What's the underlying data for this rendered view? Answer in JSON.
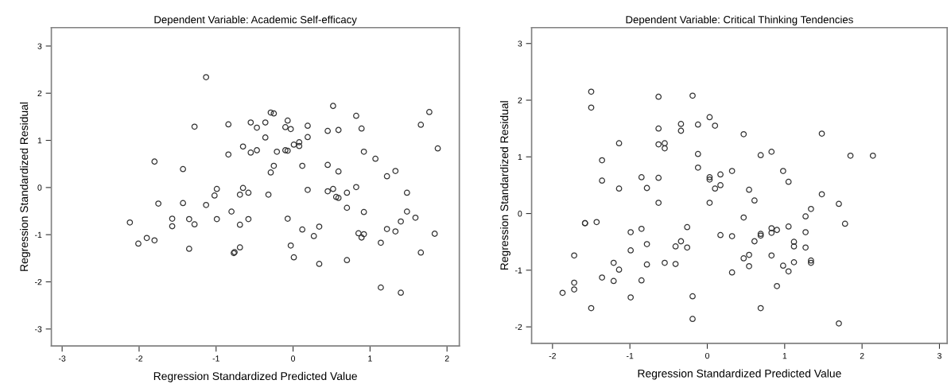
{
  "chart_data": [
    {
      "type": "scatter",
      "title": "Dependent Variable: Academic Self-efficacy",
      "xlabel": "Regression Standardized Predicted Value",
      "ylabel": "Regression Standardized Residual",
      "marker": "circle",
      "grid": false,
      "legend": false,
      "xlim": [
        -3.14,
        2.16
      ],
      "ylim": [
        -3.36,
        3.39
      ],
      "xticks": [
        -3,
        -2,
        -1,
        0,
        1,
        2
      ],
      "yticks": [
        -3,
        -2,
        -1,
        0,
        1,
        2,
        3
      ],
      "series": [
        {
          "color": "#333333",
          "x": [
            -1.13,
            -1.28,
            -0.84,
            -0.55,
            -1.8,
            -1.43,
            -0.65,
            -0.84,
            -0.55,
            -0.99,
            -1.02,
            -0.65,
            -0.69,
            -0.58,
            -1.75,
            -1.43,
            -1.13,
            -0.8,
            -2.12,
            -1.57,
            -1.57,
            -1.35,
            -1.28,
            -0.99,
            -0.69,
            -0.58,
            -2.01,
            -1.9,
            -1.8,
            -1.35,
            -0.77,
            -0.76,
            -0.69,
            0.52,
            -0.29,
            -0.25,
            1.77,
            0.82,
            -0.36,
            -0.07,
            -0.47,
            -0.1,
            -0.03,
            0.19,
            0.45,
            0.59,
            0.89,
            1.66,
            -0.36,
            0.19,
            0.08,
            0.01,
            0.08,
            -0.47,
            -0.21,
            -0.1,
            -0.07,
            0.92,
            1.88,
            1.07,
            -0.25,
            -0.29,
            0.12,
            0.45,
            0.59,
            1.33,
            1.22,
            -0.32,
            0.19,
            0.45,
            0.52,
            0.56,
            0.59,
            0.7,
            0.82,
            1.48,
            0.7,
            0.92,
            1.48,
            -0.07,
            1.4,
            1.59,
            0.12,
            0.34,
            0.27,
            0.85,
            0.89,
            0.92,
            1.22,
            1.33,
            1.84,
            1.14,
            -0.03,
            0.01,
            0.34,
            0.7,
            1.66,
            1.14,
            1.4
          ],
          "values": [
            2.34,
            1.29,
            1.34,
            1.38,
            0.55,
            0.39,
            0.87,
            0.7,
            0.74,
            -0.03,
            -0.17,
            -0.01,
            -0.15,
            -0.11,
            -0.34,
            -0.33,
            -0.37,
            -0.51,
            -0.74,
            -0.66,
            -0.82,
            -0.67,
            -0.78,
            -0.67,
            -0.79,
            -0.67,
            -1.19,
            -1.07,
            -1.12,
            -1.3,
            -1.39,
            -1.37,
            -1.27,
            1.73,
            1.59,
            1.57,
            1.6,
            1.52,
            1.38,
            1.42,
            1.27,
            1.28,
            1.24,
            1.31,
            1.2,
            1.22,
            1.25,
            1.33,
            1.06,
            1.07,
            0.96,
            0.91,
            0.88,
            0.79,
            0.76,
            0.79,
            0.78,
            0.76,
            0.83,
            0.61,
            0.46,
            0.32,
            0.46,
            0.48,
            0.34,
            0.35,
            0.24,
            -0.15,
            -0.05,
            -0.08,
            -0.03,
            -0.2,
            -0.22,
            -0.11,
            0.01,
            -0.11,
            -0.43,
            -0.52,
            -0.51,
            -0.66,
            -0.72,
            -0.64,
            -0.89,
            -0.83,
            -1.03,
            -0.97,
            -1.06,
            -0.99,
            -0.88,
            -0.93,
            -0.98,
            -1.17,
            -1.23,
            -1.48,
            -1.62,
            -1.54,
            -1.38,
            -2.12,
            -2.23
          ]
        }
      ]
    },
    {
      "type": "scatter",
      "title": "Dependent Variable: Critical Thinking Tendencies",
      "xlabel": "Regression Standardized Predicted Value",
      "ylabel": "Regression Standardized Residual",
      "marker": "circle",
      "grid": false,
      "legend": false,
      "xlim": [
        -2.27,
        3.1
      ],
      "ylim": [
        -2.29,
        3.28
      ],
      "xticks": [
        -2,
        -1,
        0,
        1,
        2,
        3
      ],
      "yticks": [
        -2,
        -1,
        0,
        1,
        2,
        3
      ],
      "series": [
        {
          "color": "#333333",
          "x": [
            -1.5,
            -1.5,
            -0.63,
            -0.19,
            0.03,
            -0.34,
            -0.34,
            -0.12,
            0.1,
            -0.63,
            -1.14,
            -0.63,
            -0.55,
            -0.55,
            -0.12,
            -1.36,
            -0.12,
            0.32,
            -0.85,
            -0.63,
            0.03,
            0.03,
            0.17,
            0.17,
            0.1,
            -1.36,
            -1.14,
            -0.78,
            -0.63,
            0.03,
            -1.58,
            -1.58,
            -1.43,
            -0.99,
            -0.85,
            -0.26,
            -0.78,
            -0.41,
            -0.34,
            -0.26,
            0.17,
            0.32,
            -0.99,
            -1.72,
            -1.21,
            -1.14,
            -0.78,
            -0.55,
            -0.41,
            0.32,
            -1.36,
            -1.21,
            -0.85,
            -1.72,
            -1.72,
            -1.87,
            -0.99,
            -0.19,
            -1.5,
            -0.19,
            0.47,
            1.48,
            0.69,
            0.83,
            1.85,
            2.14,
            0.98,
            1.05,
            0.54,
            0.61,
            1.48,
            1.7,
            1.34,
            0.47,
            1.27,
            1.78,
            0.83,
            0.9,
            1.05,
            0.69,
            0.69,
            0.83,
            1.27,
            0.61,
            1.12,
            1.12,
            1.27,
            0.47,
            0.54,
            0.83,
            0.54,
            0.98,
            1.05,
            1.12,
            1.34,
            1.34,
            0.9,
            0.69,
            1.7
          ],
          "values": [
            2.15,
            1.87,
            2.06,
            2.08,
            1.7,
            1.58,
            1.46,
            1.57,
            1.55,
            1.5,
            1.24,
            1.22,
            1.24,
            1.15,
            1.05,
            0.94,
            0.81,
            0.75,
            0.64,
            0.63,
            0.64,
            0.6,
            0.69,
            0.5,
            0.44,
            0.58,
            0.44,
            0.45,
            0.19,
            0.19,
            -0.17,
            -0.17,
            -0.15,
            -0.33,
            -0.27,
            -0.24,
            -0.54,
            -0.58,
            -0.49,
            -0.6,
            -0.38,
            -0.4,
            -0.65,
            -0.74,
            -0.87,
            -0.99,
            -0.9,
            -0.87,
            -0.89,
            -1.04,
            -1.13,
            -1.19,
            -1.18,
            -1.22,
            -1.34,
            -1.4,
            -1.48,
            -1.46,
            -1.67,
            -1.86,
            1.4,
            1.41,
            1.03,
            1.09,
            1.02,
            1.02,
            0.75,
            0.56,
            0.42,
            0.23,
            0.34,
            0.17,
            0.08,
            -0.07,
            -0.05,
            -0.18,
            -0.26,
            -0.29,
            -0.23,
            -0.36,
            -0.39,
            -0.34,
            -0.33,
            -0.49,
            -0.5,
            -0.58,
            -0.6,
            -0.79,
            -0.73,
            -0.74,
            -0.93,
            -0.92,
            -1.02,
            -0.86,
            -0.83,
            -0.87,
            -1.28,
            -1.67,
            -1.94
          ]
        }
      ]
    }
  ]
}
